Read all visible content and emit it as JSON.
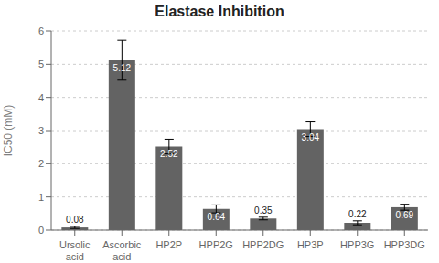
{
  "chart_data": {
    "type": "bar",
    "title": "Elastase Inhibition",
    "ylabel": "IC50 (mM)",
    "categories": [
      "Ursolic\nacid",
      "Ascorbic\nacid",
      "HP2P",
      "HPP2G",
      "HPP2DG",
      "HP3P",
      "HPP3G",
      "HPP3DG"
    ],
    "values": [
      0.08,
      5.12,
      2.52,
      0.64,
      0.35,
      3.04,
      0.22,
      0.69
    ],
    "errors": [
      0.03,
      0.6,
      0.22,
      0.12,
      0.04,
      0.22,
      0.06,
      0.09
    ],
    "color": "#636363",
    "ylim": [
      0,
      6
    ],
    "yticks": [
      0,
      1,
      2,
      3,
      4,
      5,
      6
    ],
    "grid": true,
    "data_labels": true
  }
}
